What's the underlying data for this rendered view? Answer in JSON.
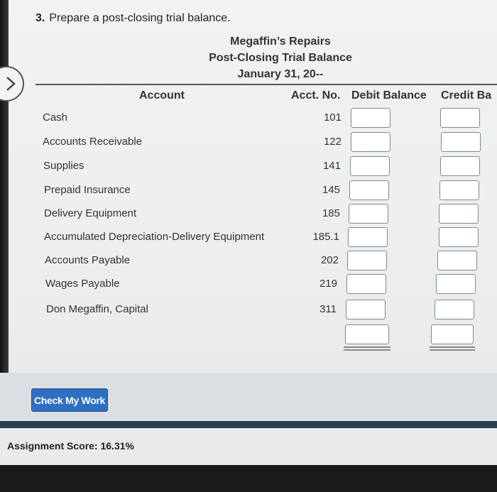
{
  "question": {
    "number": "3.",
    "text": "Prepare a post-closing trial balance."
  },
  "report": {
    "company": "Megaffin’s Repairs",
    "title": "Post-Closing Trial Balance",
    "date": "January 31, 20--"
  },
  "columns": {
    "account": "Account",
    "acct_no": "Acct. No.",
    "debit": "Debit Balance",
    "credit": "Credit Ba"
  },
  "rows": [
    {
      "account": "Cash",
      "acct_no": "101"
    },
    {
      "account": "Accounts Receivable",
      "acct_no": "122"
    },
    {
      "account": "Supplies",
      "acct_no": "141"
    },
    {
      "account": "Prepaid Insurance",
      "acct_no": "145"
    },
    {
      "account": "Delivery Equipment",
      "acct_no": "185"
    },
    {
      "account": "Accumulated Depreciation-Delivery Equipment",
      "acct_no": "185.1"
    },
    {
      "account": "Accounts Payable",
      "acct_no": "202"
    },
    {
      "account": "Wages Payable",
      "acct_no": "219"
    },
    {
      "account": "Don Megaffin, Capital",
      "acct_no": "311"
    }
  ],
  "check_button": "Check My Work",
  "score": "Assignment Score: 16.31%"
}
